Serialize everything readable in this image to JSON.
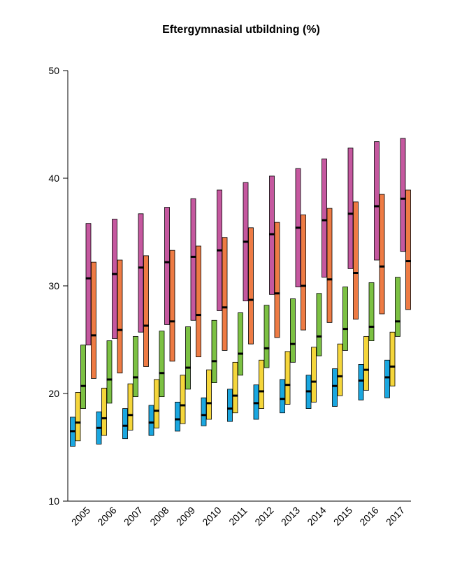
{
  "chart_data": {
    "type": "boxplot-range",
    "title": "Eftergymnasial utbildning (%)",
    "xlabel": "",
    "ylabel": "",
    "ylim": [
      10,
      50
    ],
    "yticks": [
      10,
      20,
      30,
      40,
      50
    ],
    "grid": false,
    "categories": [
      "2005",
      "2006",
      "2007",
      "2008",
      "2009",
      "2010",
      "2011",
      "2012",
      "2013",
      "2014",
      "2015",
      "2016",
      "2017"
    ],
    "series": [
      {
        "color": "#1aa7e0",
        "low": [
          15.1,
          15.3,
          15.8,
          16.1,
          16.5,
          17.0,
          17.4,
          17.6,
          18.2,
          18.6,
          18.8,
          19.4,
          19.6
        ],
        "median": [
          16.5,
          16.8,
          17.0,
          17.3,
          17.6,
          18.0,
          18.6,
          19.1,
          19.5,
          20.2,
          20.7,
          21.2,
          21.5
        ],
        "high": [
          17.8,
          18.3,
          18.6,
          18.9,
          19.2,
          19.6,
          20.4,
          20.8,
          21.3,
          21.7,
          22.3,
          22.7,
          23.1
        ]
      },
      {
        "color": "#f5d63b",
        "low": [
          15.6,
          16.1,
          16.6,
          16.8,
          17.2,
          17.6,
          18.2,
          18.6,
          19.0,
          19.2,
          19.8,
          20.3,
          20.7
        ],
        "median": [
          17.3,
          17.7,
          18.0,
          18.4,
          18.9,
          19.1,
          19.8,
          20.2,
          20.8,
          21.1,
          21.6,
          22.2,
          22.5
        ],
        "high": [
          20.1,
          20.5,
          20.9,
          21.3,
          21.7,
          22.2,
          22.9,
          23.1,
          23.9,
          24.3,
          24.6,
          25.3,
          25.7
        ]
      },
      {
        "color": "#7cc143",
        "low": [
          18.6,
          19.1,
          19.7,
          19.7,
          20.4,
          21.0,
          21.7,
          22.4,
          22.9,
          23.5,
          24.0,
          24.9,
          25.3
        ],
        "median": [
          20.7,
          21.3,
          21.5,
          21.9,
          22.4,
          23.0,
          23.7,
          24.2,
          24.6,
          25.3,
          26.0,
          26.2,
          26.7
        ],
        "high": [
          24.5,
          24.9,
          25.3,
          25.8,
          26.2,
          26.8,
          27.5,
          28.2,
          28.8,
          29.3,
          29.9,
          30.3,
          30.8
        ]
      },
      {
        "color": "#c5589f",
        "low": [
          24.5,
          25.1,
          25.7,
          26.4,
          26.8,
          27.7,
          28.6,
          29.2,
          29.9,
          30.8,
          31.6,
          32.4,
          33.2
        ],
        "median": [
          30.7,
          31.1,
          31.7,
          32.2,
          32.7,
          33.3,
          34.1,
          34.8,
          35.4,
          36.1,
          36.7,
          37.4,
          38.1
        ],
        "high": [
          35.8,
          36.2,
          36.7,
          37.3,
          38.1,
          38.9,
          39.6,
          40.2,
          40.9,
          41.8,
          42.8,
          43.4,
          43.7
        ]
      },
      {
        "color": "#ee7b44",
        "low": [
          21.4,
          21.9,
          22.5,
          23.0,
          23.4,
          24.0,
          24.6,
          25.2,
          25.9,
          26.6,
          26.9,
          27.4,
          27.8
        ],
        "median": [
          25.4,
          25.9,
          26.3,
          26.7,
          27.3,
          28.0,
          28.7,
          29.3,
          30.0,
          30.6,
          31.2,
          31.8,
          32.3
        ],
        "high": [
          32.2,
          32.4,
          32.8,
          33.3,
          33.7,
          34.5,
          35.4,
          35.9,
          36.6,
          37.2,
          37.8,
          38.5,
          38.9
        ]
      }
    ]
  }
}
